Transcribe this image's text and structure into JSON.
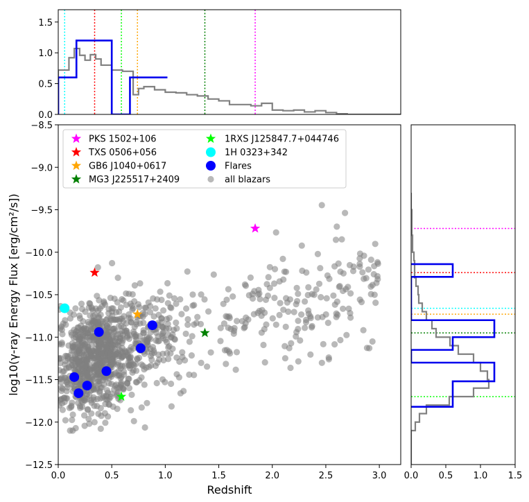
{
  "chart_data": {
    "type": "scatter",
    "xlabel": "Redshift",
    "ylabel": "log10(γ-ray Energy Flux [erg/cm²/s])",
    "xlim": [
      0,
      3.2
    ],
    "ylim": [
      -12.5,
      -8.5
    ],
    "xticks": [
      "0.0",
      "0.5",
      "1.0",
      "1.5",
      "2.0",
      "2.5",
      "3.0"
    ],
    "yticks": [
      "−12.5",
      "−12.0",
      "−11.5",
      "−11.0",
      "−10.5",
      "−10.0",
      "−9.5",
      "−9.0",
      "−8.5"
    ],
    "top_hist": {
      "ylim": [
        0,
        1.7
      ],
      "yticks": [
        "0.0",
        "0.5",
        "1.0",
        "1.5"
      ],
      "blazar_step": {
        "color": "#808080",
        "edges": [
          0.0,
          0.1,
          0.15,
          0.2,
          0.25,
          0.3,
          0.35,
          0.4,
          0.5,
          0.6,
          0.7,
          0.75,
          0.8,
          0.9,
          1.0,
          1.1,
          1.2,
          1.3,
          1.4,
          1.5,
          1.6,
          1.7,
          1.8,
          1.9,
          2.0,
          2.1,
          2.2,
          2.3,
          2.4,
          2.5,
          2.6,
          2.7,
          3.2
        ],
        "values": [
          0.72,
          0.92,
          1.07,
          0.96,
          0.88,
          0.97,
          0.9,
          0.8,
          0.72,
          0.7,
          0.32,
          0.42,
          0.45,
          0.4,
          0.36,
          0.35,
          0.32,
          0.3,
          0.25,
          0.22,
          0.16,
          0.16,
          0.14,
          0.18,
          0.07,
          0.06,
          0.07,
          0.04,
          0.06,
          0.03,
          0.01,
          0.0
        ]
      },
      "flare_step": {
        "color": "#0000ee",
        "edges": [
          0.0,
          0.17,
          0.33,
          0.5,
          0.67,
          0.83,
          1.02
        ],
        "values": [
          0.6,
          1.2,
          1.2,
          0.0,
          0.6,
          0.6
        ]
      }
    },
    "right_hist": {
      "xlim": [
        0,
        1.5
      ],
      "xticks": [
        "0.0",
        "0.5",
        "1.0",
        "1.5"
      ],
      "blazar_step": {
        "color": "#808080",
        "edges": [
          -12.5,
          -12.1,
          -12.0,
          -11.9,
          -11.8,
          -11.7,
          -11.6,
          -11.5,
          -11.4,
          -11.3,
          -11.2,
          -11.1,
          -11.0,
          -10.9,
          -10.8,
          -10.7,
          -10.6,
          -10.5,
          -10.4,
          -10.3,
          -10.2,
          -10.1,
          -10.0,
          -9.9,
          -9.8,
          -9.7,
          -9.6,
          -9.5,
          -9.3
        ],
        "values": [
          0.0,
          0.06,
          0.12,
          0.22,
          0.55,
          0.9,
          1.12,
          1.1,
          1.0,
          0.9,
          0.68,
          0.56,
          0.36,
          0.3,
          0.22,
          0.16,
          0.11,
          0.1,
          0.07,
          0.05,
          0.05,
          0.04,
          0.02,
          0.02,
          0.01,
          0.01,
          0.01,
          0.0
        ]
      },
      "flare_step": {
        "color": "#0000ee",
        "edges": [
          -11.82,
          -11.52,
          -11.3,
          -11.15,
          -11.0,
          -10.8,
          -10.6,
          -10.4,
          -10.29,
          -10.14
        ],
        "values": [
          0.6,
          1.2,
          0.0,
          0.6,
          1.2,
          0.0,
          0.0,
          0.0,
          0.6
        ]
      }
    },
    "markers": [
      {
        "name": "PKS 1502+106",
        "x": 1.84,
        "y": -9.72,
        "color": "#ff00ff",
        "shape": "star"
      },
      {
        "name": "TXS 0506+056",
        "x": 0.34,
        "y": -10.24,
        "color": "#ff0000",
        "shape": "star"
      },
      {
        "name": "GB6 J1040+0617",
        "x": 0.74,
        "y": -10.73,
        "color": "#ffa500",
        "shape": "star"
      },
      {
        "name": "MG3 J225517+2409",
        "x": 1.37,
        "y": -10.95,
        "color": "#008000",
        "shape": "star"
      },
      {
        "name": "1RXS J125847.7+044746",
        "x": 0.59,
        "y": -11.7,
        "color": "#00ff00",
        "shape": "star"
      },
      {
        "name": "1H 0323+342",
        "x": 0.06,
        "y": -10.66,
        "color": "#00ffff",
        "shape": "circle"
      }
    ],
    "flares": {
      "name": "Flares",
      "color": "#0000ff",
      "points": [
        [
          0.15,
          -11.47
        ],
        [
          0.19,
          -11.66
        ],
        [
          0.27,
          -11.57
        ],
        [
          0.38,
          -10.94
        ],
        [
          0.45,
          -11.4
        ],
        [
          0.77,
          -11.13
        ],
        [
          0.88,
          -10.86
        ]
      ]
    },
    "all_blazars": {
      "name": "all blazars",
      "color": "#808080",
      "count": 1200,
      "x_range": [
        0.0,
        3.1
      ],
      "y_range": [
        -12.1,
        -9.35
      ],
      "seed": 20180713
    },
    "legend": {
      "placement": "top-left",
      "entries": [
        "PKS 1502+106",
        "TXS 0506+056",
        "GB6 J1040+0617",
        "MG3 J225517+2409",
        "1RXS J125847.7+044746",
        "1H 0323+342",
        "Flares",
        "all blazars"
      ]
    }
  }
}
